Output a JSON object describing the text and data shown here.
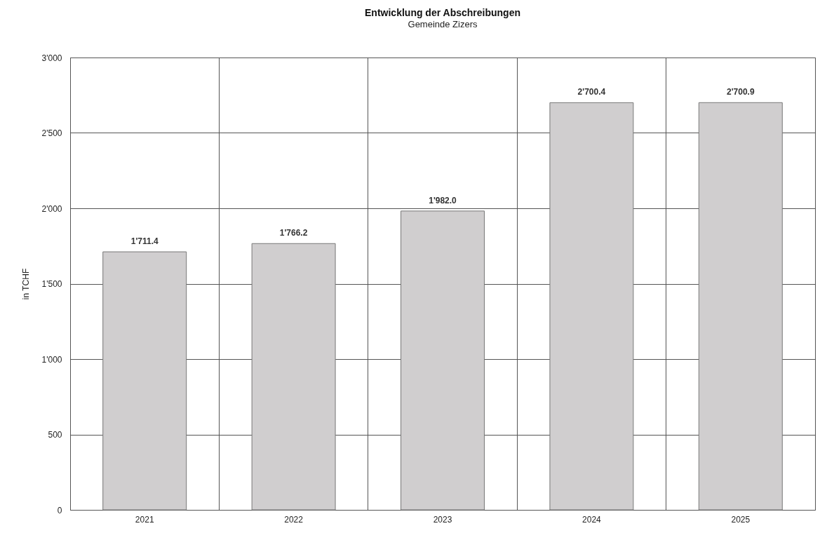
{
  "chart_data": {
    "type": "bar",
    "title": "Entwicklung der Abschreibungen",
    "subtitle": "Gemeinde Zizers",
    "ylabel": "in TCHF",
    "categories": [
      "2021",
      "2022",
      "2023",
      "2024",
      "2025"
    ],
    "values": [
      1711.4,
      1766.2,
      1982.0,
      2700.4,
      2700.9
    ],
    "value_labels": [
      "1'711.4",
      "1'766.2",
      "1'982.0",
      "2'700.4",
      "2'700.9"
    ],
    "color": "#d0cecf",
    "ylim": [
      0,
      3000
    ],
    "yticks": [
      0,
      500,
      {
        "value": 1000,
        "label": "1'000"
      },
      {
        "value": 1500,
        "label": "1'500"
      },
      {
        "value": 2000,
        "label": "2'000"
      },
      {
        "value": 2500,
        "label": "2'500"
      },
      {
        "value": 3000,
        "label": "3'000"
      }
    ],
    "grid": true
  }
}
